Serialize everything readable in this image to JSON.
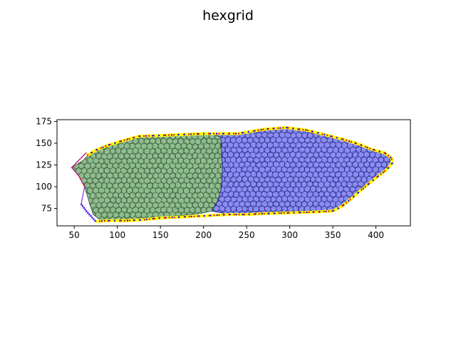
{
  "chart_data": {
    "type": "mesh",
    "title": "hexgrid",
    "xlabel": "",
    "ylabel": "",
    "xlim": [
      30,
      440
    ],
    "ylim": [
      55,
      177
    ],
    "xticks": [
      50,
      100,
      150,
      200,
      250,
      300,
      350,
      400
    ],
    "yticks": [
      75,
      100,
      125,
      150,
      175
    ],
    "grid": false,
    "regions": [
      {
        "name": "green-cells",
        "fill": "#8fbc8f",
        "edge": "#2f4f2f",
        "polygon": [
          [
            47,
            122
          ],
          [
            60,
            130
          ],
          [
            66,
            136
          ],
          [
            75,
            142
          ],
          [
            90,
            148
          ],
          [
            110,
            154
          ],
          [
            125,
            158
          ],
          [
            150,
            159
          ],
          [
            175,
            160
          ],
          [
            195,
            161
          ],
          [
            210,
            161
          ],
          [
            220,
            157
          ],
          [
            221,
            140
          ],
          [
            222,
            120
          ],
          [
            221,
            100
          ],
          [
            217,
            85
          ],
          [
            210,
            72
          ],
          [
            195,
            69
          ],
          [
            175,
            67
          ],
          [
            150,
            65
          ],
          [
            130,
            63
          ],
          [
            110,
            62
          ],
          [
            95,
            62
          ],
          [
            80,
            62
          ],
          [
            72,
            68
          ],
          [
            68,
            80
          ],
          [
            62,
            100
          ],
          [
            55,
            113
          ]
        ]
      },
      {
        "name": "blue-cells",
        "fill": "#8a8cf0",
        "edge": "#202080",
        "polygon": [
          [
            210,
            161
          ],
          [
            240,
            161
          ],
          [
            270,
            166
          ],
          [
            296,
            168
          ],
          [
            320,
            165
          ],
          [
            340,
            160
          ],
          [
            360,
            155
          ],
          [
            380,
            149
          ],
          [
            395,
            143
          ],
          [
            410,
            139
          ],
          [
            418,
            133
          ],
          [
            419,
            127
          ],
          [
            413,
            120
          ],
          [
            400,
            110
          ],
          [
            385,
            98
          ],
          [
            370,
            85
          ],
          [
            360,
            77
          ],
          [
            350,
            72
          ],
          [
            330,
            71
          ],
          [
            300,
            70
          ],
          [
            270,
            69
          ],
          [
            250,
            68
          ],
          [
            230,
            68
          ],
          [
            210,
            72
          ],
          [
            217,
            85
          ],
          [
            221,
            100
          ],
          [
            222,
            120
          ],
          [
            221,
            140
          ],
          [
            220,
            157
          ]
        ]
      }
    ],
    "boundary": {
      "inner_color": "#ffff00",
      "outer_colors": [
        "#ff0000",
        "#0000ff"
      ],
      "points": [
        [
          65,
          136
        ],
        [
          75,
          142
        ],
        [
          90,
          148
        ],
        [
          110,
          154
        ],
        [
          125,
          158
        ],
        [
          150,
          159
        ],
        [
          175,
          160
        ],
        [
          200,
          161
        ],
        [
          215,
          161
        ],
        [
          240,
          161
        ],
        [
          270,
          166
        ],
        [
          296,
          168
        ],
        [
          320,
          165
        ],
        [
          340,
          160
        ],
        [
          360,
          155
        ],
        [
          380,
          149
        ],
        [
          395,
          143
        ],
        [
          410,
          139
        ],
        [
          418,
          133
        ],
        [
          419,
          127
        ],
        [
          413,
          120
        ],
        [
          400,
          110
        ],
        [
          385,
          98
        ],
        [
          370,
          85
        ],
        [
          360,
          77
        ],
        [
          350,
          72
        ],
        [
          330,
          71
        ],
        [
          300,
          70
        ],
        [
          270,
          69
        ],
        [
          250,
          68
        ],
        [
          230,
          68
        ],
        [
          210,
          67
        ],
        [
          190,
          66
        ],
        [
          170,
          65
        ],
        [
          150,
          64
        ],
        [
          130,
          62
        ],
        [
          110,
          61
        ],
        [
          90,
          61
        ],
        [
          75,
          60
        ]
      ]
    },
    "left_edge": {
      "color": "#8a2be2",
      "points": [
        [
          64,
          139
        ],
        [
          47,
          122
        ],
        [
          55,
          113
        ],
        [
          62,
          100
        ],
        [
          58,
          80
        ],
        [
          64,
          72
        ],
        [
          75,
          60
        ]
      ]
    }
  }
}
